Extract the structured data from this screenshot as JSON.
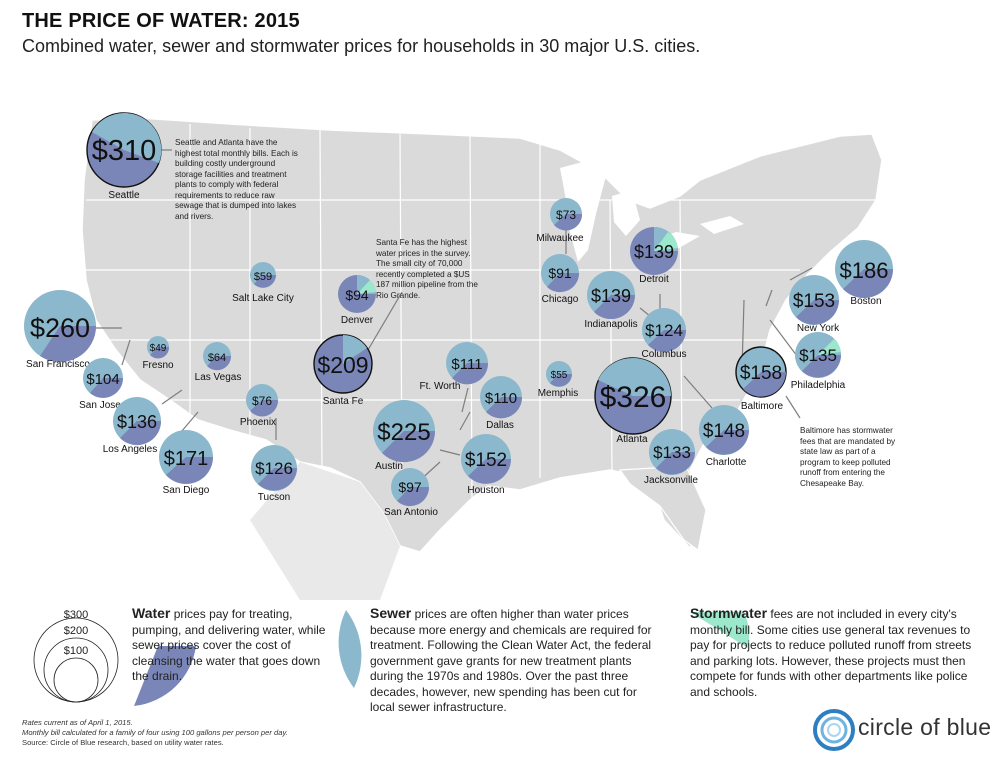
{
  "title": "THE PRICE OF WATER: 2015",
  "subtitle": "Combined water, sewer and stormwater prices for households in 30 major U.S. cities.",
  "colors": {
    "water": "#7a86b8",
    "sewer": "#8bb8cc",
    "stormwater": "#9ce8cc",
    "land": "#dadada",
    "border": "#ffffff"
  },
  "cities": [
    {
      "name": "Seattle",
      "price": "$310"
    },
    {
      "name": "San Francisco",
      "price": "$260"
    },
    {
      "name": "Fresno",
      "price": "$49"
    },
    {
      "name": "San Jose",
      "price": "$104"
    },
    {
      "name": "Los Angeles",
      "price": "$136"
    },
    {
      "name": "San Diego",
      "price": "$171"
    },
    {
      "name": "Las Vegas",
      "price": "$64"
    },
    {
      "name": "Salt Lake City",
      "price": "$59"
    },
    {
      "name": "Phoenix",
      "price": "$76"
    },
    {
      "name": "Tucson",
      "price": "$126"
    },
    {
      "name": "Denver",
      "price": "$94"
    },
    {
      "name": "Santa Fe",
      "price": "$209"
    },
    {
      "name": "Ft. Worth",
      "price": "$111"
    },
    {
      "name": "Dallas",
      "price": "$110"
    },
    {
      "name": "Austin",
      "price": "$225"
    },
    {
      "name": "San Antonio",
      "price": "$97"
    },
    {
      "name": "Houston",
      "price": "$152"
    },
    {
      "name": "Milwaukee",
      "price": "$73"
    },
    {
      "name": "Chicago",
      "price": "$91"
    },
    {
      "name": "Detroit",
      "price": "$139"
    },
    {
      "name": "Indianapolis",
      "price": "$139"
    },
    {
      "name": "Columbus",
      "price": "$124"
    },
    {
      "name": "Memphis",
      "price": "$55"
    },
    {
      "name": "Atlanta",
      "price": "$326"
    },
    {
      "name": "Jacksonville",
      "price": "$133"
    },
    {
      "name": "Charlotte",
      "price": "$148"
    },
    {
      "name": "Baltimore",
      "price": "$158"
    },
    {
      "name": "Philadelphia",
      "price": "$135"
    },
    {
      "name": "New York",
      "price": "$153"
    },
    {
      "name": "Boston",
      "price": "$186"
    }
  ],
  "notes": {
    "seattle": "Seattle and Atlanta have the highest total monthly bills. Each is building costly underground storage facilities and treatment plants to comply with federal requirements to reduce raw sewage that is dumped into lakes and rivers.",
    "santa_fe": "Santa Fe has the highest water prices in the survey. The small city of 70,000 recently completed a $US 187 million pipeline from the Rio Grande.",
    "baltimore": "Baltimore has stormwater fees that are mandated by state law as part of a program to keep polluted runoff from entering the Chesapeake Bay."
  },
  "legend": {
    "scale": [
      "$300",
      "$200",
      "$100"
    ],
    "water_term": "Water",
    "water_text": " prices pay for treating, pumping, and delivering water, while sewer prices cover the cost of cleansing the water that goes down the drain.",
    "sewer_term": "Sewer",
    "sewer_text": " prices are often higher than water prices because more energy and chemicals are required for treatment. Following the Clean Water Act, the federal government gave grants for new treatment plants during the 1970s and 1980s. Over the past three decades, however, new spending has been cut for local sewer infrastructure.",
    "storm_term": "Stormwater",
    "storm_text": " fees are not included in every city's monthly bill. Some cities use general tax revenues to pay for projects to reduce polluted runoff from streets and parking lots. However, these projects must then compete for funds with other departments like police and schools."
  },
  "footnotes": {
    "line1": "Rates current as of April 1, 2015.",
    "line2": "Monthly bill calculated for a family of four using 100 gallons per person per day.",
    "line3": "Source: Circle of Blue research, based on utility water rates."
  },
  "brand": "circle of blue"
}
